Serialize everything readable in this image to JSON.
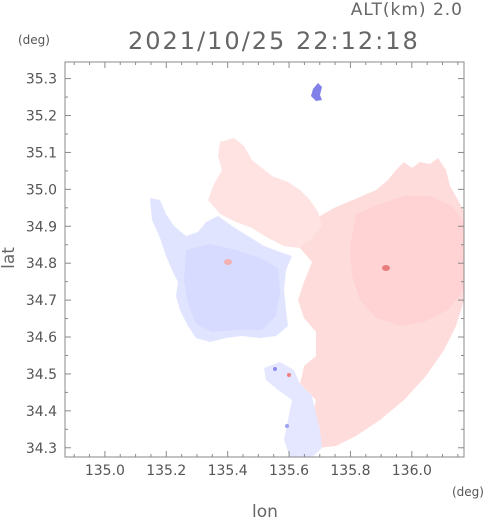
{
  "header": {
    "altitude_label": "ALT(km) 2.0",
    "timestamp": "2021/10/25 22:12:18"
  },
  "axes": {
    "x_label": "lon",
    "y_label": "lat",
    "x_unit": "(deg)",
    "y_unit": "(deg)",
    "x_range": [
      134.87,
      136.17
    ],
    "y_range": [
      34.275,
      35.345
    ],
    "x_ticks": [
      "135.0",
      "135.2",
      "135.4",
      "135.6",
      "135.8",
      "136.0"
    ],
    "y_ticks": [
      "35.3",
      "35.2",
      "35.1",
      "35.0",
      "34.9",
      "34.8",
      "34.7",
      "34.6",
      "34.5",
      "34.4",
      "34.3"
    ]
  },
  "colors": {
    "approaching": "#dde2ff",
    "receding": "#ffd9d9",
    "strong_receding": "#f28a8a",
    "strong_approaching": "#7f7fe8",
    "frame": "#888888"
  }
}
